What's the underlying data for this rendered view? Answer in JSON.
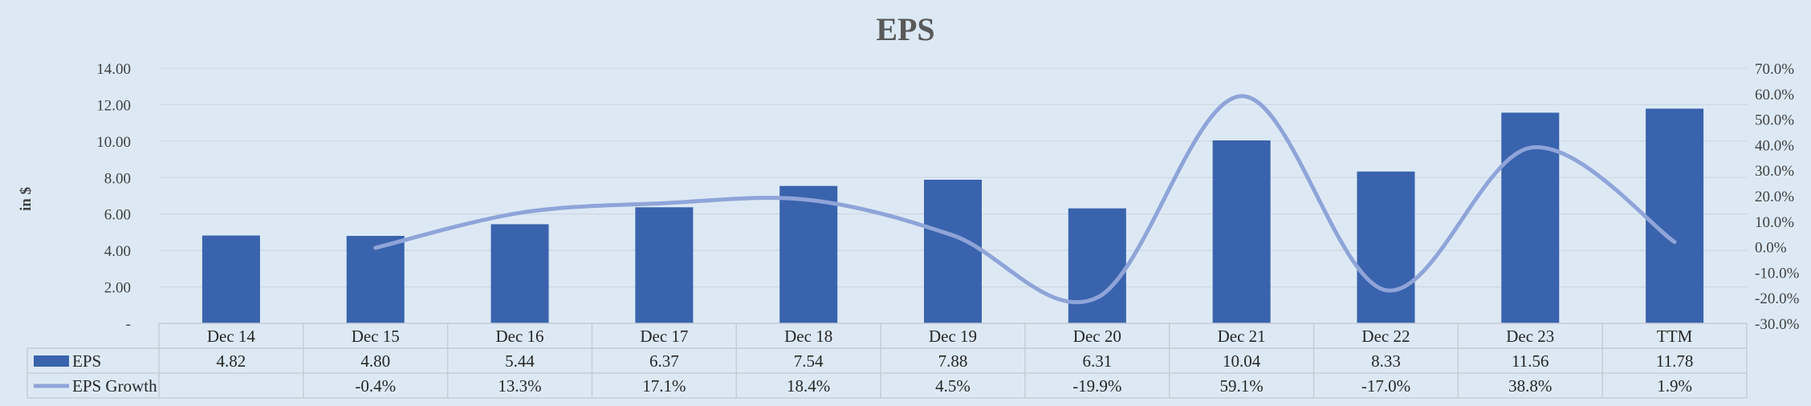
{
  "chart_data": {
    "type": "bar",
    "title": "EPS",
    "ylabel": "in $",
    "categories": [
      "Dec 14",
      "Dec 15",
      "Dec 16",
      "Dec 17",
      "Dec 18",
      "Dec 19",
      "Dec 20",
      "Dec 21",
      "Dec 22",
      "Dec 23",
      "TTM"
    ],
    "ylim": [
      0,
      14
    ],
    "y2lim": [
      -30,
      70
    ],
    "y_ticks": [
      "-",
      "2.00",
      "4.00",
      "6.00",
      "8.00",
      "10.00",
      "12.00",
      "14.00"
    ],
    "y_tick_values": [
      0,
      2,
      4,
      6,
      8,
      10,
      12,
      14
    ],
    "y2_ticks": [
      "-30.0%",
      "-20.0%",
      "-10.0%",
      "0.0%",
      "10.0%",
      "20.0%",
      "30.0%",
      "40.0%",
      "50.0%",
      "60.0%",
      "70.0%"
    ],
    "y2_tick_values": [
      -30,
      -20,
      -10,
      0,
      10,
      20,
      30,
      40,
      50,
      60,
      70
    ],
    "series": [
      {
        "name": "EPS",
        "kind": "bar",
        "axis": "left",
        "color": "#3a63ad",
        "values": [
          4.82,
          4.8,
          5.44,
          6.37,
          7.54,
          7.88,
          6.31,
          10.04,
          8.33,
          11.56,
          11.78
        ],
        "labels": [
          "4.82",
          "4.80",
          "5.44",
          "6.37",
          "7.54",
          "7.88",
          "6.31",
          "10.04",
          "8.33",
          "11.56",
          "11.78"
        ]
      },
      {
        "name": "EPS Growth",
        "kind": "line",
        "axis": "right",
        "color": "#8fa4d8",
        "values": [
          null,
          -0.4,
          13.3,
          17.1,
          18.4,
          4.5,
          -19.9,
          59.1,
          -17.0,
          38.8,
          1.9
        ],
        "labels": [
          "",
          "-0.4%",
          "13.3%",
          "17.1%",
          "18.4%",
          "4.5%",
          "-19.9%",
          "59.1%",
          "-17.0%",
          "38.8%",
          "1.9%"
        ]
      }
    ],
    "legend": "table-below",
    "grid": true
  }
}
